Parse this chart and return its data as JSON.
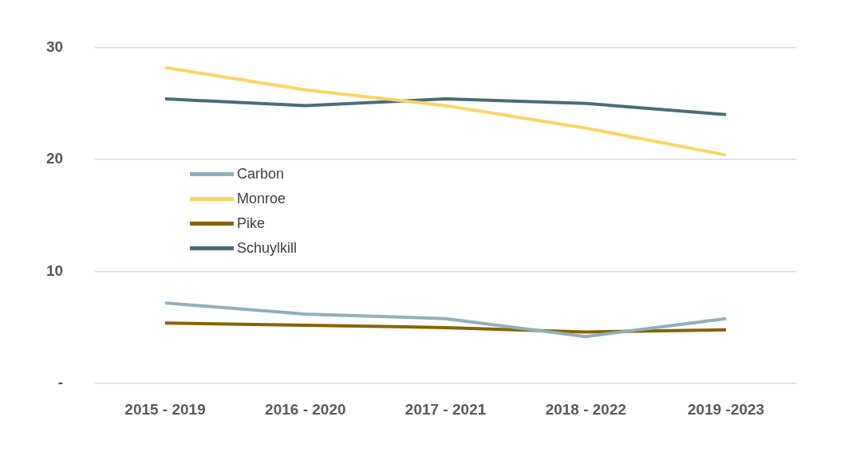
{
  "chart_data": {
    "type": "line",
    "categories": [
      "2015 - 2019",
      "2016 - 2020",
      "2017 - 2021",
      "2018 - 2022",
      "2019 -2023"
    ],
    "series": [
      {
        "name": "Carbon",
        "color": "#8eb0bd",
        "values": [
          7.2,
          6.2,
          5.8,
          4.2,
          5.8
        ]
      },
      {
        "name": "Monroe",
        "color": "#ffd361",
        "values": [
          28.2,
          26.2,
          24.8,
          22.8,
          20.4
        ]
      },
      {
        "name": "Pike",
        "color": "#8a6200",
        "values": [
          5.4,
          5.2,
          5.0,
          4.6,
          4.8
        ]
      },
      {
        "name": "Schuylkill",
        "color": "#496e78",
        "values": [
          25.4,
          24.8,
          25.4,
          25.0,
          24.0
        ]
      }
    ],
    "ylim": [
      0,
      30
    ],
    "yticks": [
      {
        "value": 0,
        "label": "-"
      },
      10,
      20,
      30
    ],
    "grid": "y",
    "legend": "left",
    "marker": "none",
    "line_style": "solid"
  }
}
